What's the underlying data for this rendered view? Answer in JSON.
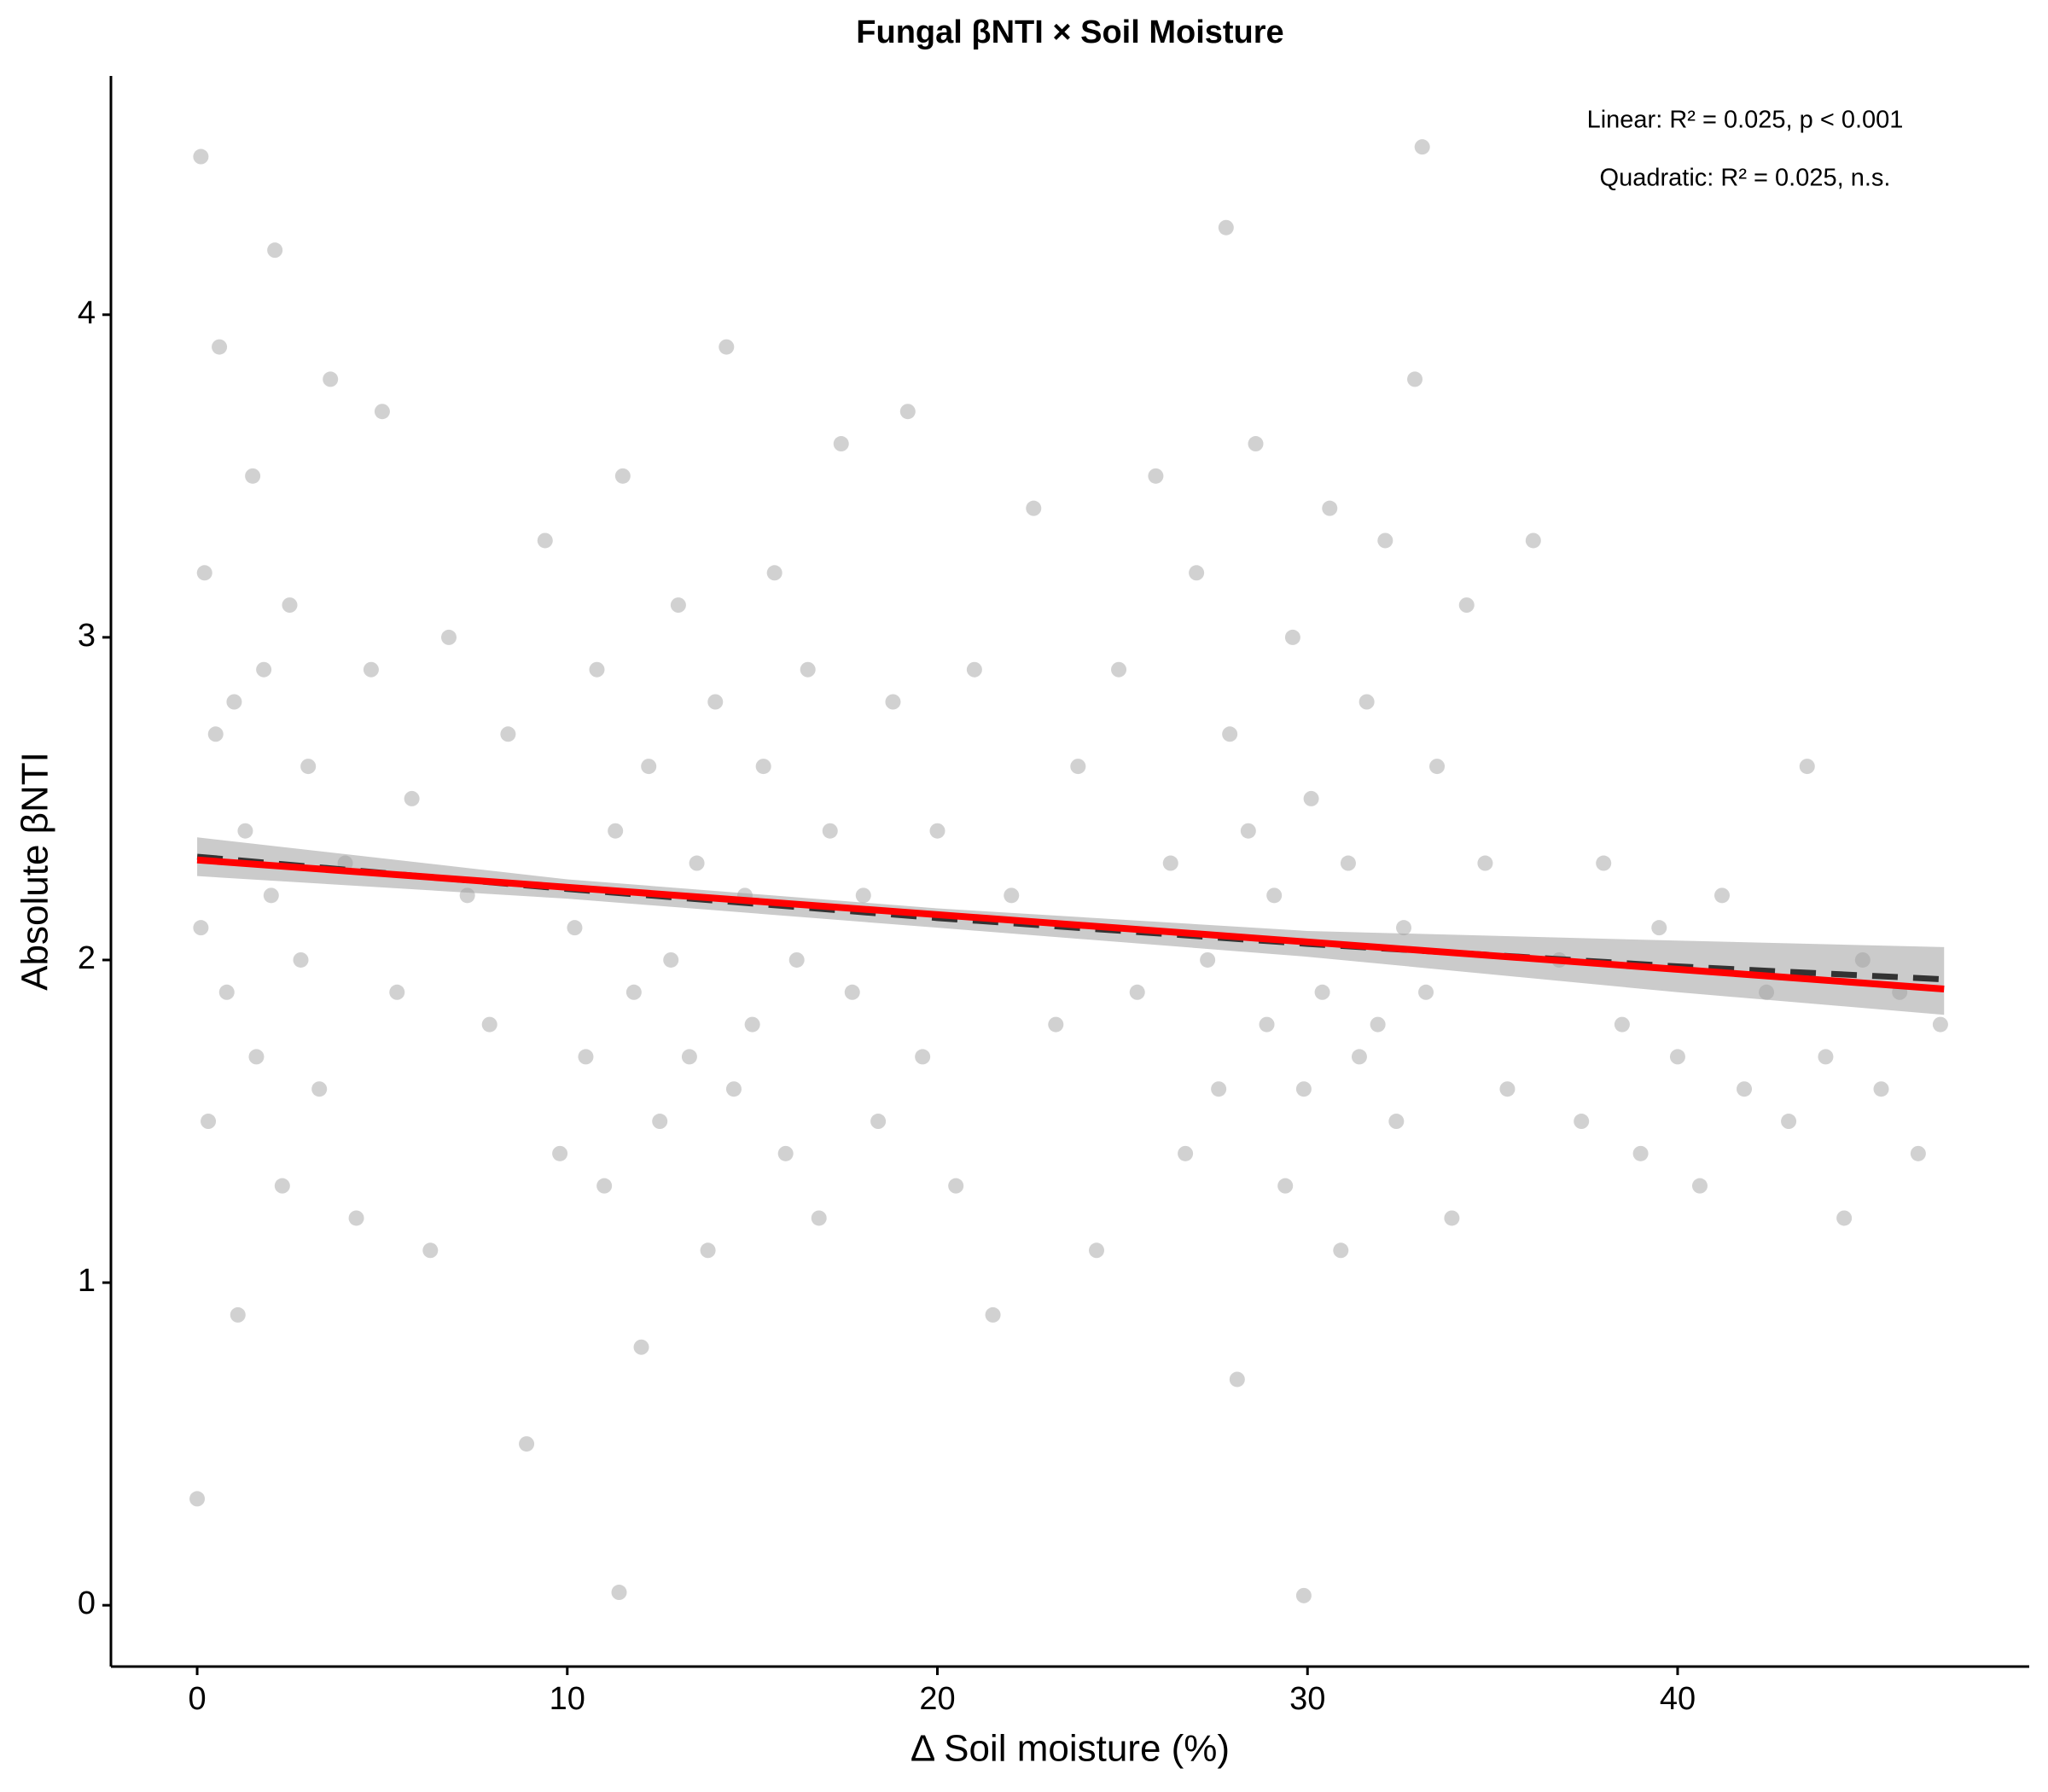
{
  "chart_data": {
    "type": "scatter",
    "title": "Fungal βNTI × Soil Moisture",
    "xlabel": "Δ Soil moisture (%)",
    "ylabel": "Absolute βNTI",
    "annotations": [
      "Linear:  R² = 0.025, p < 0.001",
      "Quadratic:  R² = 0.025, n.s."
    ],
    "xlim": [
      -2.33,
      49.5
    ],
    "ylim": [
      -0.19,
      4.74
    ],
    "xticks": [
      0,
      10,
      20,
      30,
      40
    ],
    "yticks": [
      0,
      1,
      2,
      3,
      4
    ],
    "grid": false,
    "color": "#bdbdbd",
    "x": [
      0.1,
      0.2,
      0.3,
      0.5,
      0.6,
      0.8,
      1.0,
      1.1,
      1.3,
      1.5,
      1.6,
      1.8,
      2.0,
      2.1,
      2.3,
      2.5,
      2.8,
      3.0,
      3.3,
      3.6,
      4.0,
      4.3,
      4.7,
      5.0,
      5.4,
      5.8,
      6.3,
      6.8,
      7.3,
      7.9,
      8.4,
      8.9,
      9.4,
      9.8,
      10.2,
      10.5,
      10.8,
      11.0,
      11.3,
      11.5,
      11.8,
      12.0,
      12.2,
      12.5,
      12.8,
      13.0,
      13.3,
      13.5,
      13.8,
      14.0,
      14.3,
      14.5,
      14.8,
      15.0,
      15.3,
      15.6,
      15.9,
      16.2,
      16.5,
      16.8,
      17.1,
      17.4,
      17.7,
      18.0,
      18.4,
      18.8,
      19.2,
      19.6,
      20.0,
      20.5,
      21.0,
      21.5,
      22.0,
      22.6,
      23.2,
      23.8,
      24.3,
      24.9,
      25.4,
      25.9,
      26.3,
      26.7,
      27.0,
      27.3,
      27.6,
      27.9,
      28.1,
      28.4,
      28.6,
      28.9,
      29.1,
      29.4,
      29.6,
      29.9,
      30.1,
      30.4,
      30.6,
      30.9,
      31.1,
      31.4,
      31.6,
      31.9,
      32.1,
      32.4,
      32.6,
      32.9,
      33.2,
      33.5,
      33.9,
      34.3,
      34.8,
      35.4,
      36.1,
      36.8,
      37.4,
      38.0,
      38.5,
      39.0,
      39.5,
      40.0,
      40.6,
      41.2,
      41.8,
      42.4,
      43.0,
      43.5,
      44.0,
      44.5,
      45.0,
      45.5,
      46.0,
      46.5,
      47.1,
      0.1,
      33.1,
      11.4,
      29.9,
      0.0,
      27.8
    ],
    "values": [
      2.1,
      3.2,
      1.5,
      2.7,
      3.9,
      1.9,
      2.8,
      0.9,
      2.4,
      3.5,
      1.7,
      2.9,
      2.2,
      4.2,
      1.3,
      3.1,
      2.0,
      2.6,
      1.6,
      3.8,
      2.3,
      1.2,
      2.9,
      3.7,
      1.9,
      2.5,
      1.1,
      3.0,
      2.2,
      1.8,
      2.7,
      0.5,
      3.3,
      1.4,
      2.1,
      1.7,
      2.9,
      1.3,
      2.4,
      3.5,
      1.9,
      0.8,
      2.6,
      1.5,
      2.0,
      3.1,
      1.7,
      2.3,
      1.1,
      2.8,
      3.9,
      1.6,
      2.2,
      1.8,
      2.6,
      3.2,
      1.4,
      2.0,
      2.9,
      1.2,
      2.4,
      3.6,
      1.9,
      2.2,
      1.5,
      2.8,
      3.7,
      1.7,
      2.4,
      1.3,
      2.9,
      0.9,
      2.2,
      3.4,
      1.8,
      2.6,
      1.1,
      2.9,
      1.9,
      3.5,
      2.3,
      1.4,
      3.2,
      2.0,
      1.6,
      2.7,
      0.7,
      2.4,
      3.6,
      1.8,
      2.2,
      1.3,
      3.0,
      1.6,
      2.5,
      1.9,
      3.4,
      1.1,
      2.3,
      1.7,
      2.8,
      1.8,
      3.3,
      1.5,
      2.1,
      3.8,
      1.9,
      2.6,
      1.2,
      3.1,
      2.3,
      1.6,
      3.3,
      2.0,
      1.5,
      2.3,
      1.8,
      1.4,
      2.1,
      1.7,
      1.3,
      2.2,
      1.6,
      1.9,
      1.5,
      2.6,
      1.7,
      1.2,
      2.0,
      1.6,
      1.9,
      1.4,
      1.8,
      4.49,
      4.52,
      0.04,
      0.03,
      0.33,
      4.27
    ],
    "band": {
      "color": "#a0a0a0",
      "x": [
        0,
        10,
        20,
        30,
        40,
        47.2
      ],
      "lower": [
        2.26,
        2.19,
        2.1,
        2.01,
        1.9,
        1.83
      ],
      "upper": [
        2.38,
        2.25,
        2.16,
        2.09,
        2.06,
        2.04
      ]
    },
    "fit_quadratic": {
      "color": "#333333",
      "dashed": true,
      "x": [
        0,
        10,
        20,
        30,
        40,
        47.2
      ],
      "values": [
        2.32,
        2.22,
        2.13,
        2.05,
        1.98,
        1.94
      ]
    },
    "fit_linear": {
      "color": "#ff0000",
      "dashed": false,
      "x": [
        0,
        47.2
      ],
      "values": [
        2.31,
        1.91
      ]
    }
  }
}
